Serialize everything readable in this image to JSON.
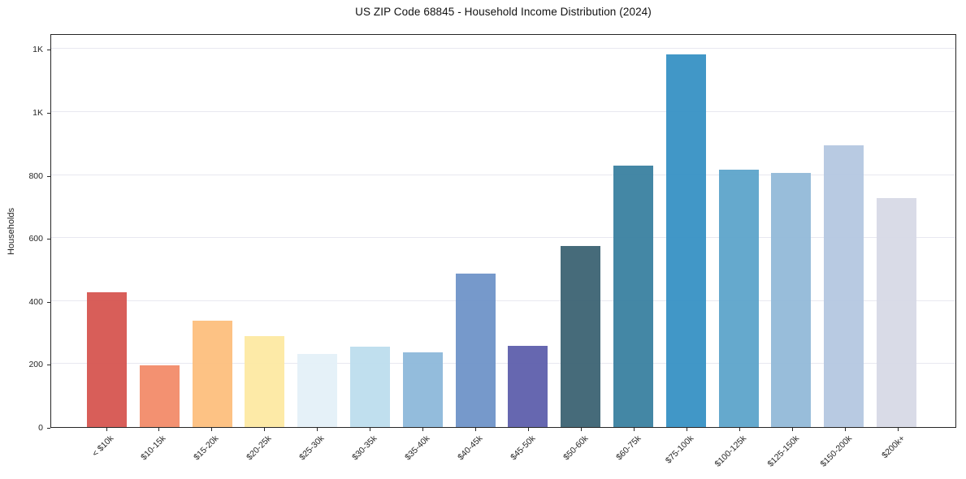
{
  "chart_data": {
    "type": "bar",
    "title": "US ZIP Code 68845 - Household Income Distribution (2024)",
    "xlabel": "",
    "ylabel": "Households",
    "categories": [
      "< $10k",
      "$10-15k",
      "$15-20k",
      "$20-25k",
      "$25-30k",
      "$30-35k",
      "$35-40k",
      "$40-45k",
      "$45-50k",
      "$50-60k",
      "$60-75k",
      "$75-100k",
      "$100-125k",
      "$125-150k",
      "$150-200k",
      "$200k+"
    ],
    "values": [
      428,
      196,
      339,
      290,
      232,
      254,
      238,
      487,
      259,
      576,
      830,
      1184,
      816,
      808,
      895,
      728
    ],
    "bar_colors": [
      "#d6544f",
      "#f28a68",
      "#fdbe7c",
      "#fde9a2",
      "#e3f0f8",
      "#bcdded",
      "#8cb8da",
      "#6d93c8",
      "#5c5dab",
      "#3a6272",
      "#38809f",
      "#3590c3",
      "#5ba4ca",
      "#92b9d8",
      "#b4c7e0",
      "#d7d9e5"
    ],
    "yticks": [
      {
        "value": 0,
        "label": "0"
      },
      {
        "value": 200,
        "label": "200"
      },
      {
        "value": 400,
        "label": "400"
      },
      {
        "value": 600,
        "label": "600"
      },
      {
        "value": 800,
        "label": "800"
      },
      {
        "value": 1000,
        "label": "1K"
      },
      {
        "value": 1200,
        "label": "1K"
      }
    ],
    "ylim": [
      0,
      1250
    ],
    "grid": true,
    "grid_color": "#e8e8f0",
    "legend": "none",
    "x_tick_rotation_deg": 45
  }
}
